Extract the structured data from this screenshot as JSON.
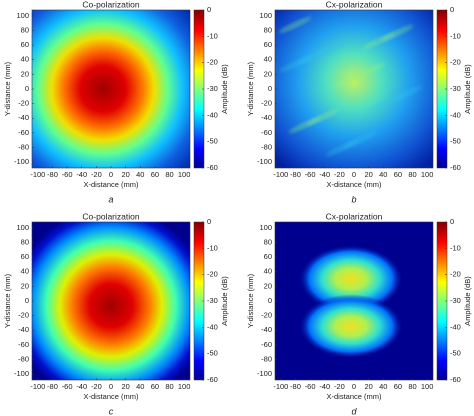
{
  "chart_data": [
    {
      "type": "heatmap",
      "title": "Co-polarization",
      "xlabel": "X-distance (mm)",
      "ylabel": "Y-distance (mm)",
      "colorbar_label": "Amplitude (dB)",
      "caption": "a",
      "xlim": [
        -108,
        108
      ],
      "ylim": [
        -108,
        108
      ],
      "xticks": [
        -100,
        -80,
        -60,
        -40,
        -20,
        0,
        20,
        40,
        60,
        80,
        100
      ],
      "yticks": [
        -100,
        -80,
        -60,
        -40,
        -20,
        0,
        20,
        40,
        60,
        80,
        100
      ],
      "clim": [
        -60,
        0
      ],
      "cticks": [
        0,
        -10,
        -20,
        -30,
        -40,
        -50,
        -60
      ]
    },
    {
      "type": "heatmap",
      "title": "Cx-polarization",
      "xlabel": "X-distance (mm)",
      "ylabel": "Y-distance (mm)",
      "colorbar_label": "Amplitude (dB)",
      "caption": "b",
      "xlim": [
        -108,
        108
      ],
      "ylim": [
        -108,
        108
      ],
      "xticks": [
        -100,
        -80,
        -60,
        -40,
        -20,
        0,
        20,
        40,
        60,
        80,
        100
      ],
      "yticks": [
        -100,
        -80,
        -60,
        -40,
        -20,
        0,
        20,
        40,
        60,
        80,
        100
      ],
      "clim": [
        -60,
        0
      ],
      "cticks": [
        0,
        -10,
        -20,
        -30,
        -40,
        -50,
        -60
      ]
    },
    {
      "type": "heatmap",
      "title": "Co-polarization",
      "xlabel": "X-distance (mm)",
      "ylabel": "Y-distance (mm)",
      "colorbar_label": "Amplitude (dB)",
      "caption": "c",
      "xlim": [
        -108,
        108
      ],
      "ylim": [
        -108,
        108
      ],
      "xticks": [
        -100,
        -80,
        -60,
        -40,
        -20,
        0,
        20,
        40,
        60,
        80,
        100
      ],
      "yticks": [
        -100,
        -80,
        -60,
        -40,
        -20,
        0,
        20,
        40,
        60,
        80,
        100
      ],
      "clim": [
        -60,
        0
      ],
      "cticks": [
        0,
        -10,
        -20,
        -30,
        -40,
        -50,
        -60
      ]
    },
    {
      "type": "heatmap",
      "title": "Cx-polarization",
      "xlabel": "X-distance (mm)",
      "ylabel": "Y-distance (mm)",
      "colorbar_label": "Amplitude (dB)",
      "caption": "d",
      "xlim": [
        -108,
        108
      ],
      "ylim": [
        -108,
        108
      ],
      "xticks": [
        -100,
        -80,
        -60,
        -40,
        -20,
        0,
        20,
        40,
        60,
        80,
        100
      ],
      "yticks": [
        -100,
        -80,
        -60,
        -40,
        -20,
        0,
        20,
        40,
        60,
        80,
        100
      ],
      "clim": [
        -60,
        0
      ],
      "cticks": [
        0,
        -10,
        -20,
        -30,
        -40,
        -50,
        -60
      ]
    }
  ]
}
